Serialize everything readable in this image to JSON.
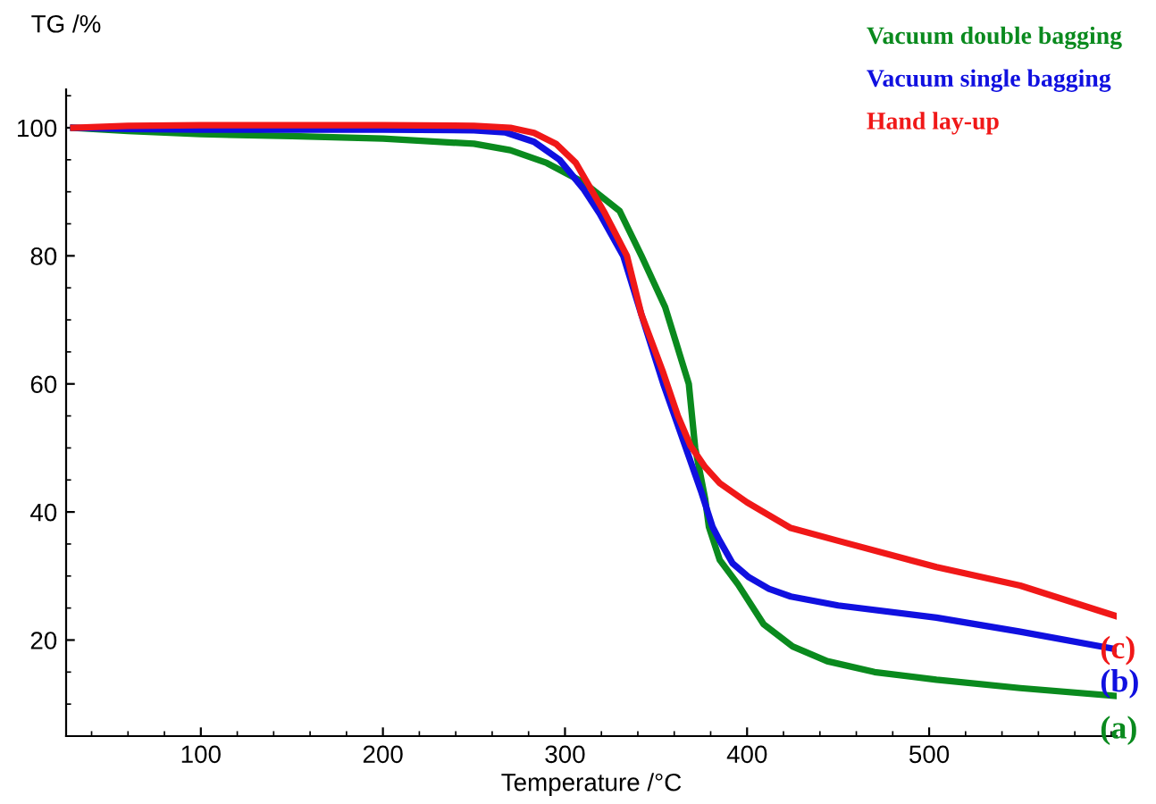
{
  "chart_data": {
    "type": "line",
    "xlabel": "Temperature /°C",
    "ylabel": "TG /%",
    "xlim": [
      26,
      603
    ],
    "ylim": [
      5,
      106
    ],
    "xticks": [
      100,
      200,
      300,
      400,
      500
    ],
    "yticks": [
      20,
      40,
      60,
      80,
      100
    ],
    "series": [
      {
        "name": "Vacuum double bagging",
        "color": "#0a8a1e",
        "x": [
          30,
          60,
          100,
          150,
          200,
          250,
          270,
          290,
          310,
          330,
          342,
          355,
          368,
          371.5,
          377,
          379,
          385,
          395,
          409,
          425,
          444,
          470,
          504,
          550,
          602
        ],
        "values": [
          100,
          99.5,
          99,
          98.7,
          98.3,
          97.5,
          96.5,
          94.5,
          91.5,
          87,
          80,
          72,
          60,
          50,
          42,
          37.7,
          32.5,
          28.7,
          22.5,
          19,
          16.7,
          15,
          13.8,
          12.5,
          11.3
        ]
      },
      {
        "name": "Vacuum single bagging",
        "color": "#1010e0",
        "x": [
          30,
          60,
          100,
          150,
          200,
          250,
          267,
          283,
          297,
          310,
          319,
          332,
          342,
          354,
          366,
          375,
          381,
          385,
          392,
          401,
          412,
          424,
          450,
          504,
          550,
          602
        ],
        "values": [
          100,
          99.8,
          99.7,
          99.7,
          99.7,
          99.6,
          99.3,
          97.8,
          95,
          90.5,
          86.6,
          80,
          70.8,
          60,
          50.3,
          43,
          37.7,
          35.5,
          32,
          29.8,
          28,
          26.8,
          25.4,
          23.5,
          21.3,
          18.6
        ]
      },
      {
        "name": "Hand lay-up",
        "color": "#f01818",
        "x": [
          30,
          60,
          100,
          150,
          200,
          250,
          270,
          283,
          295,
          306,
          322,
          334,
          342,
          354,
          362,
          369,
          377,
          385,
          400,
          424,
          450,
          504,
          550,
          602
        ],
        "values": [
          100,
          100.3,
          100.4,
          100.4,
          100.4,
          100.3,
          100,
          99.2,
          97.5,
          94.5,
          86.6,
          80,
          70.8,
          61.7,
          55,
          50.3,
          47,
          44.5,
          41.5,
          37.5,
          35.5,
          31.4,
          28.5,
          23.8
        ]
      }
    ],
    "legend": "top right",
    "marker": "none",
    "line_style": "solid",
    "grid": false,
    "annotations": [
      "(a)",
      "(b)",
      "(c)"
    ]
  }
}
